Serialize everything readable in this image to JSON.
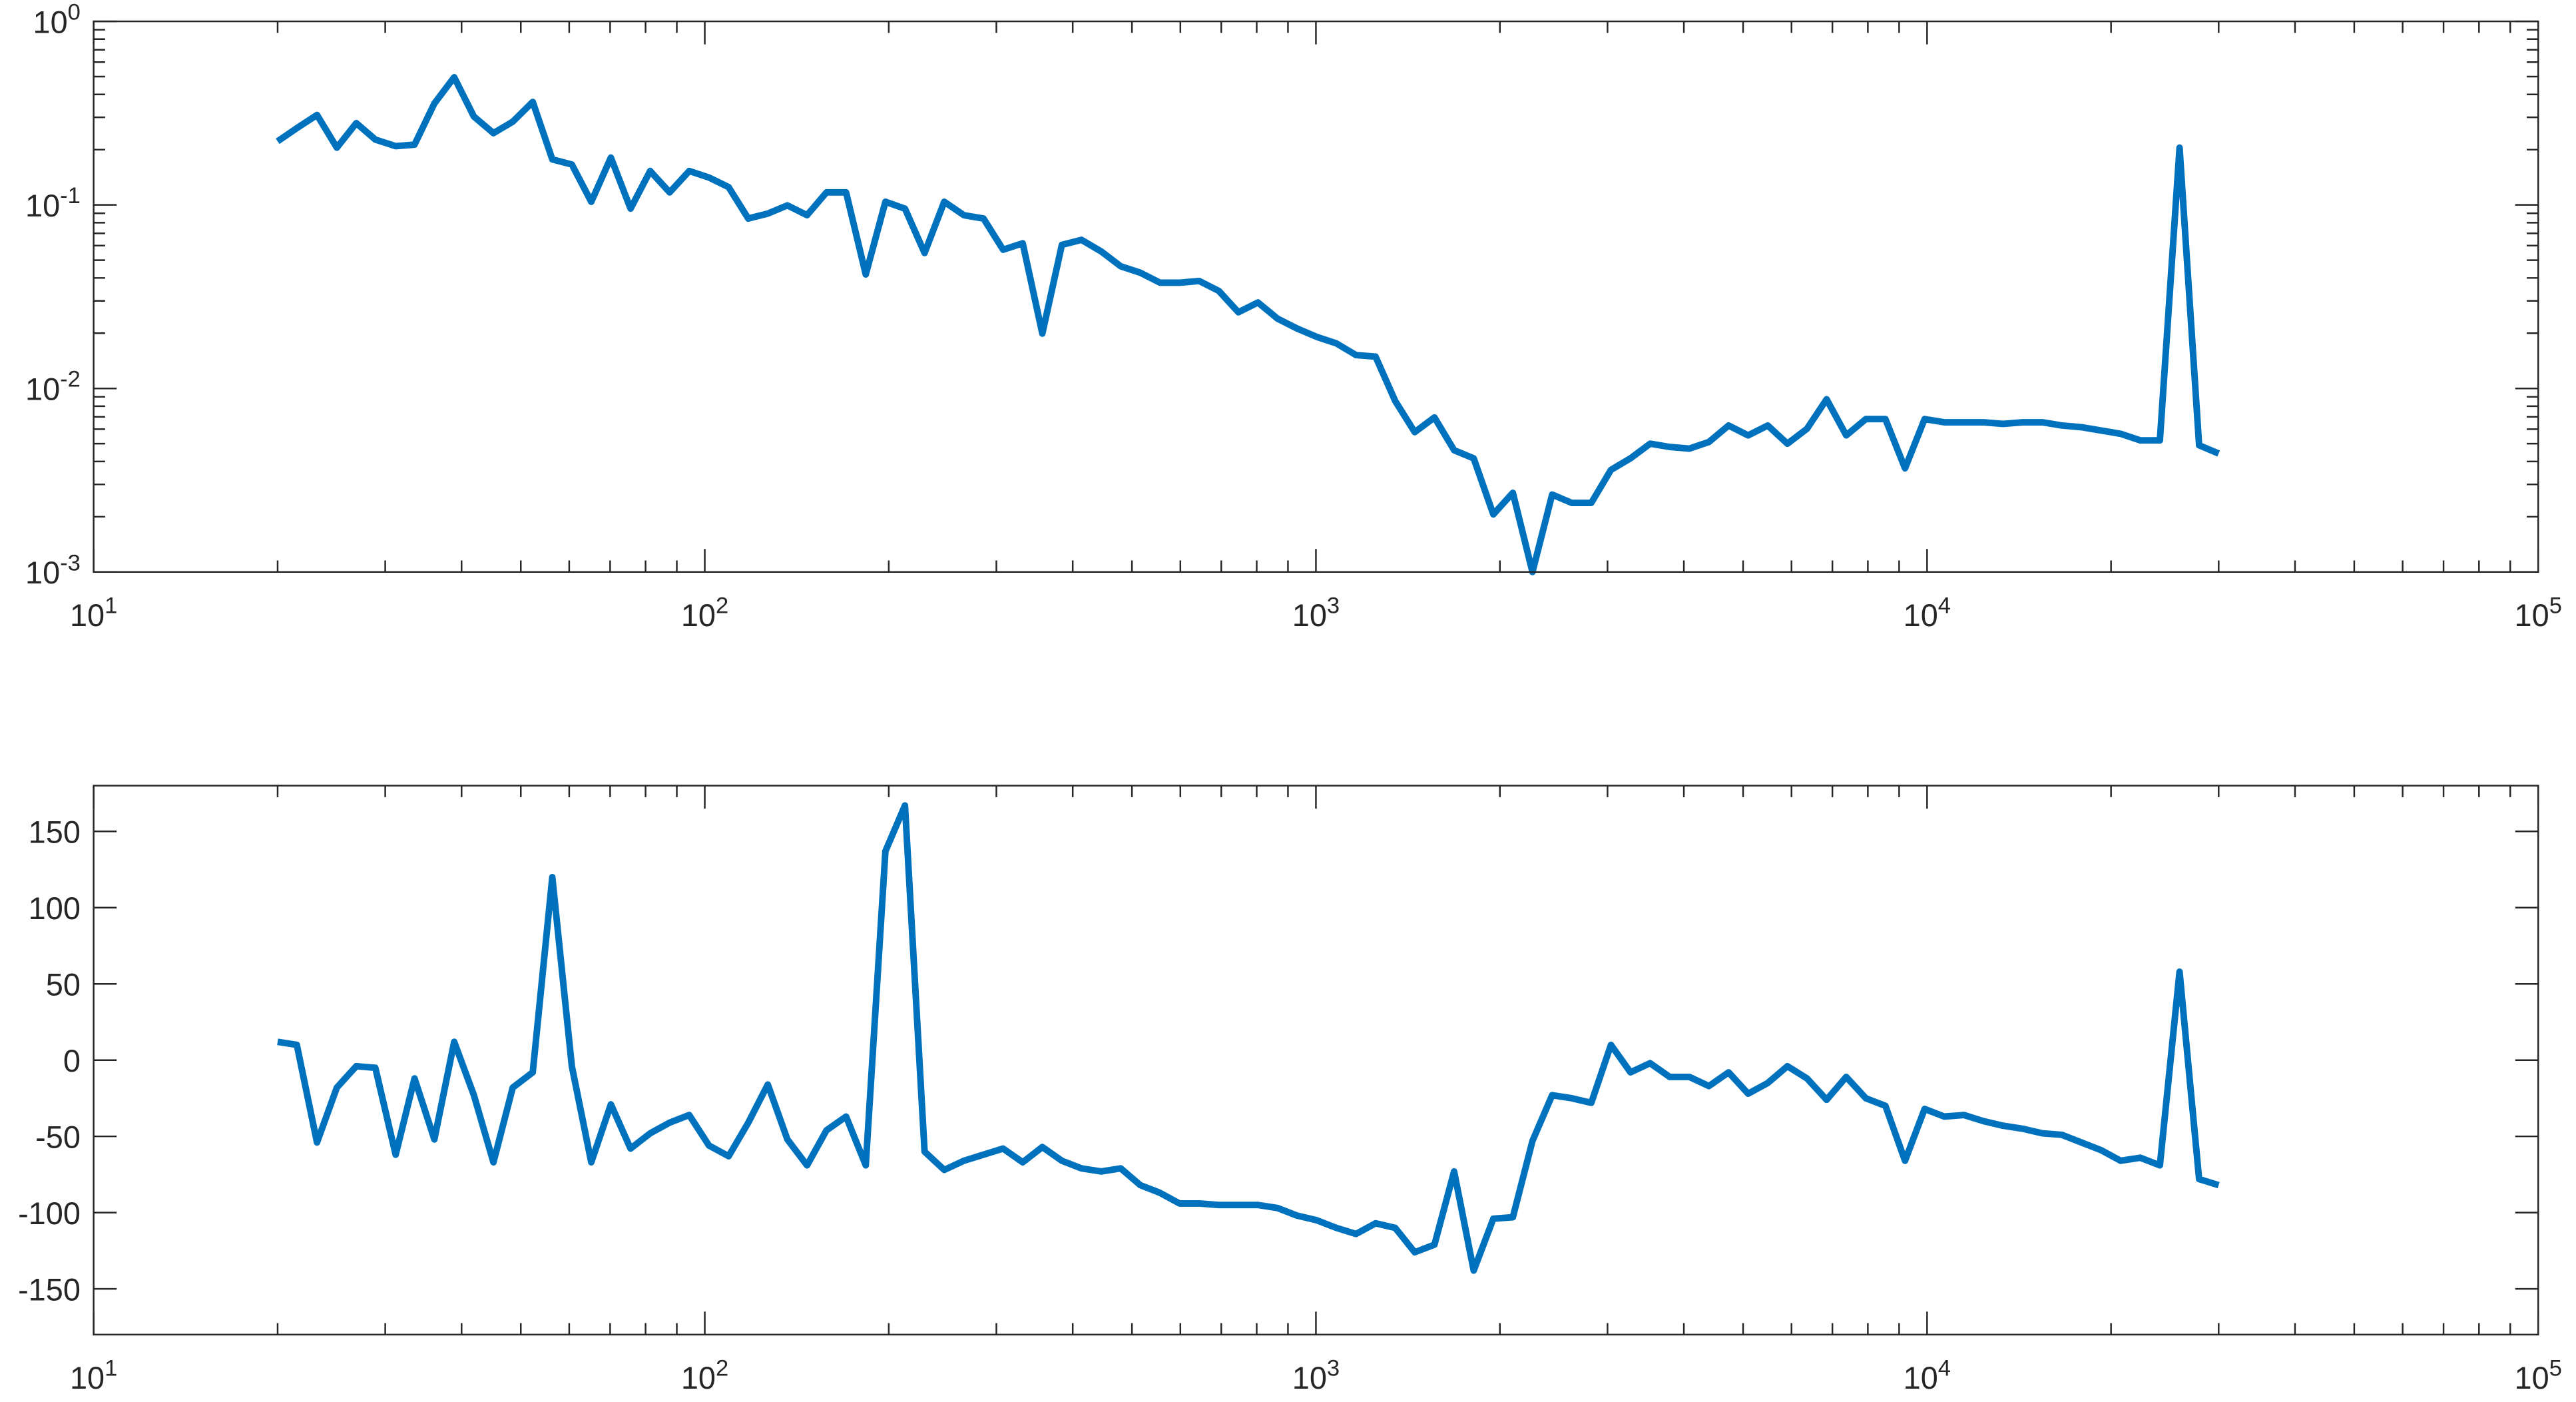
{
  "chart_data": [
    {
      "type": "line",
      "xscale": "log",
      "yscale": "log",
      "box": true,
      "xlim": [
        10,
        100000
      ],
      "xticks": [
        {
          "value": 10,
          "label": "10^1"
        },
        {
          "value": 100,
          "label": "10^2"
        },
        {
          "value": 1000,
          "label": "10^3"
        },
        {
          "value": 10000,
          "label": "10^4"
        },
        {
          "value": 100000,
          "label": "10^5"
        }
      ],
      "ylim": [
        0.001,
        1
      ],
      "yticks": [
        {
          "value": 0.001,
          "label": "10^-3"
        },
        {
          "value": 0.01,
          "label": "10^-2"
        },
        {
          "value": 0.1,
          "label": "10^-1"
        },
        {
          "value": 1,
          "label": "10^0"
        }
      ],
      "x": [
        20,
        21.5,
        23.2,
        25.0,
        26.9,
        28.9,
        31.2,
        33.5,
        36.1,
        38.9,
        41.9,
        45.1,
        48.5,
        52.3,
        56.3,
        60.6,
        65.2,
        70.2,
        75.6,
        81.4,
        87.6,
        94.3,
        101.6,
        109.4,
        117.8,
        126.8,
        136.5,
        147.0,
        158.2,
        170.3,
        183.4,
        197.5,
        212.6,
        228.9,
        246.5,
        265.4,
        285.8,
        307.7,
        331.3,
        356.7,
        384.0,
        413.4,
        445.2,
        479.3,
        516.1,
        555.5,
        598.2,
        644.1,
        693.5,
        746.6,
        803.9,
        865.4,
        931.8,
        1003,
        1080,
        1163,
        1252,
        1348,
        1451,
        1563,
        1683,
        1812,
        1951,
        2100,
        2261,
        2435,
        2621,
        2822,
        3039,
        3271,
        3522,
        3792,
        4083,
        4396,
        4734,
        5096,
        5487,
        5908,
        6361,
        6849,
        7374,
        7939,
        8548,
        9203,
        9908,
        10670,
        11490,
        12370,
        13310,
        14340,
        15440,
        16620,
        17890,
        19260,
        20740,
        22330,
        24040,
        25890,
        27870,
        30000
      ],
      "series": [
        {
          "color": "#0072bd",
          "values": [
            0.222,
            0.262,
            0.309,
            0.205,
            0.279,
            0.227,
            0.209,
            0.213,
            0.357,
            0.496,
            0.303,
            0.246,
            0.284,
            0.364,
            0.177,
            0.166,
            0.104,
            0.181,
            0.0954,
            0.153,
            0.117,
            0.153,
            0.141,
            0.125,
            0.0843,
            0.0897,
            0.0994,
            0.0879,
            0.117,
            0.117,
            0.0418,
            0.104,
            0.0954,
            0.0547,
            0.104,
            0.0879,
            0.0843,
            0.057,
            0.0618,
            0.0199,
            0.0606,
            0.0645,
            0.0558,
            0.0463,
            0.0427,
            0.0377,
            0.0377,
            0.0385,
            0.034,
            0.026,
            0.0294,
            0.024,
            0.0212,
            0.0191,
            0.0176,
            0.0152,
            0.0149,
            0.00855,
            0.00578,
            0.00695,
            0.00461,
            0.00416,
            0.00206,
            0.0027,
            0.001,
            0.00264,
            0.00238,
            0.00238,
            0.0036,
            0.00416,
            0.005,
            0.0048,
            0.0047,
            0.00511,
            0.00628,
            0.00555,
            0.00628,
            0.005,
            0.00603,
            0.00873,
            0.00555,
            0.00681,
            0.00681,
            0.00367,
            0.00681,
            0.00654,
            0.00654,
            0.00654,
            0.00641,
            0.00654,
            0.00654,
            0.00628,
            0.00615,
            0.0059,
            0.00566,
            0.00521,
            0.00521,
            0.205,
            0.0049,
            0.00442
          ]
        }
      ]
    },
    {
      "type": "line",
      "xscale": "log",
      "yscale": "linear",
      "box": true,
      "xlim": [
        10,
        100000
      ],
      "xticks": [
        {
          "value": 10,
          "label": "10^1"
        },
        {
          "value": 100,
          "label": "10^2"
        },
        {
          "value": 1000,
          "label": "10^3"
        },
        {
          "value": 10000,
          "label": "10^4"
        },
        {
          "value": 100000,
          "label": "10^5"
        }
      ],
      "ylim": [
        -180,
        180
      ],
      "yticks": [
        -150,
        -100,
        -50,
        0,
        50,
        100,
        150
      ],
      "x": [
        20,
        21.5,
        23.2,
        25.0,
        26.9,
        28.9,
        31.2,
        33.5,
        36.1,
        38.9,
        41.9,
        45.1,
        48.5,
        52.3,
        56.3,
        60.6,
        65.2,
        70.2,
        75.6,
        81.4,
        87.6,
        94.3,
        101.6,
        109.4,
        117.8,
        126.8,
        136.5,
        147.0,
        158.2,
        170.3,
        183.4,
        197.5,
        212.6,
        228.9,
        246.5,
        265.4,
        285.8,
        307.7,
        331.3,
        356.7,
        384.0,
        413.4,
        445.2,
        479.3,
        516.1,
        555.5,
        598.2,
        644.1,
        693.5,
        746.6,
        803.9,
        865.4,
        931.8,
        1003,
        1080,
        1163,
        1252,
        1348,
        1451,
        1563,
        1683,
        1812,
        1951,
        2100,
        2261,
        2435,
        2621,
        2822,
        3039,
        3271,
        3522,
        3792,
        4083,
        4396,
        4734,
        5096,
        5487,
        5908,
        6361,
        6849,
        7374,
        7939,
        8548,
        9203,
        9908,
        10670,
        11490,
        12370,
        13310,
        14340,
        15440,
        16620,
        17890,
        19260,
        20740,
        22330,
        24040,
        25890,
        27870,
        30000
      ],
      "series": [
        {
          "color": "#0072bd",
          "values": [
            12,
            10,
            -54,
            -18,
            -4,
            -5,
            -62,
            -12,
            -52,
            12,
            -23,
            -67,
            -18,
            -8,
            120,
            -4,
            -67,
            -29,
            -58,
            -48,
            -41,
            -36,
            -56,
            -63,
            -41,
            -16,
            -52,
            -69,
            -46,
            -37,
            -69,
            137,
            167,
            -60,
            -72,
            -66,
            -62,
            -58,
            -67,
            -57,
            -66,
            -71,
            -73,
            -71,
            -82,
            -87,
            -94,
            -94,
            -95,
            -95,
            -95,
            -97,
            -102,
            -105,
            -110,
            -114,
            -107,
            -110,
            -126,
            -121,
            -73,
            -138,
            -104,
            -103,
            -53,
            -23,
            -25,
            -28,
            10,
            -8,
            -2,
            -11,
            -11,
            -17,
            -8,
            -22,
            -15,
            -4,
            -12,
            -26,
            -11,
            -25,
            -30,
            -66,
            -32,
            -37,
            -36,
            -40,
            -43,
            -45,
            -48,
            -49,
            -54,
            -59,
            -66,
            -64,
            -69,
            58,
            -78,
            -82
          ]
        }
      ]
    }
  ]
}
